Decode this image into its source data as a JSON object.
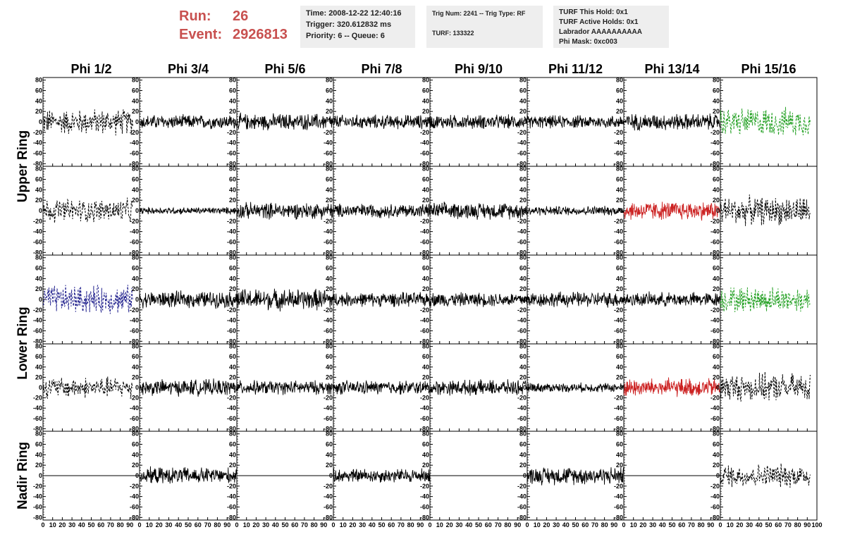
{
  "header": {
    "run_label": "Run:",
    "run_value": "26",
    "event_label": "Event:",
    "event_value": "2926813"
  },
  "info_time": {
    "time": "Time: 2008-12-22 12:40:16",
    "trigger": "Trigger: 320.612832 ms",
    "priority": "Priority: 6 -- Queue: 6"
  },
  "info_trig": {
    "trig": "Trig Num: 2241 -- Trig Type: RF",
    "turf": "TURF: 133322"
  },
  "info_turf": {
    "hold": "TURF This Hold: 0x1",
    "active": "TURF Active Holds: 0x1",
    "labrador": "Labrador AAAAAAAAAA",
    "phimask": "Phi Mask: 0xc003"
  },
  "chart_data": {
    "type": "line",
    "phi_columns": [
      "Phi 1/2",
      "Phi 3/4",
      "Phi 5/6",
      "Phi 7/8",
      "Phi 9/10",
      "Phi 11/12",
      "Phi 13/14",
      "Phi 15/16"
    ],
    "ring_labels": [
      "Upper Ring",
      "Lower Ring",
      "Nadir Ring"
    ],
    "rows": 5,
    "ylim": [
      -85,
      85
    ],
    "yticks": [
      80,
      60,
      40,
      20,
      0,
      -20,
      -40,
      -60,
      -80
    ],
    "xlim": [
      0,
      100
    ],
    "xticks": [
      0,
      10,
      20,
      30,
      40,
      50,
      60,
      70,
      80,
      90,
      100
    ],
    "x_tick_labels": [
      "0",
      "10",
      "20",
      "30",
      "40",
      "50",
      "60",
      "70",
      "80",
      "90",
      "100"
    ],
    "panels": [
      [
        "dash-black",
        "solid-black",
        "solid-black",
        "solid-black",
        "solid-black",
        "solid-black",
        "solid-black",
        "dash-green"
      ],
      [
        "dash-black",
        "solid-black",
        "solid-black",
        "solid-black",
        "solid-black",
        "solid-black",
        "solid-red",
        "dash-black"
      ],
      [
        "dash-blue",
        "solid-black",
        "solid-black",
        "solid-black",
        "solid-black",
        "solid-black",
        "solid-black",
        "dash-green"
      ],
      [
        "dash-black",
        "solid-black",
        "solid-black",
        "solid-black",
        "solid-black",
        "solid-black",
        "solid-red",
        "dash-black"
      ],
      [
        "flat",
        "solid-black",
        "flat",
        "solid-black",
        "flat",
        "solid-black",
        "flat",
        "dash-black"
      ]
    ],
    "amplitudes": [
      [
        22,
        12,
        14,
        12,
        12,
        11,
        14,
        24
      ],
      [
        20,
        6,
        14,
        12,
        14,
        8,
        16,
        24
      ],
      [
        24,
        14,
        18,
        12,
        12,
        13,
        12,
        22
      ],
      [
        18,
        14,
        12,
        12,
        13,
        8,
        16,
        24
      ],
      [
        0,
        14,
        0,
        12,
        0,
        15,
        0,
        20
      ]
    ],
    "colors": {
      "solid-black": "#000000",
      "solid-red": "#cc2222",
      "dash-green": "#22a022",
      "dash-blue": "#22228e",
      "dash-black": "#000000"
    }
  }
}
